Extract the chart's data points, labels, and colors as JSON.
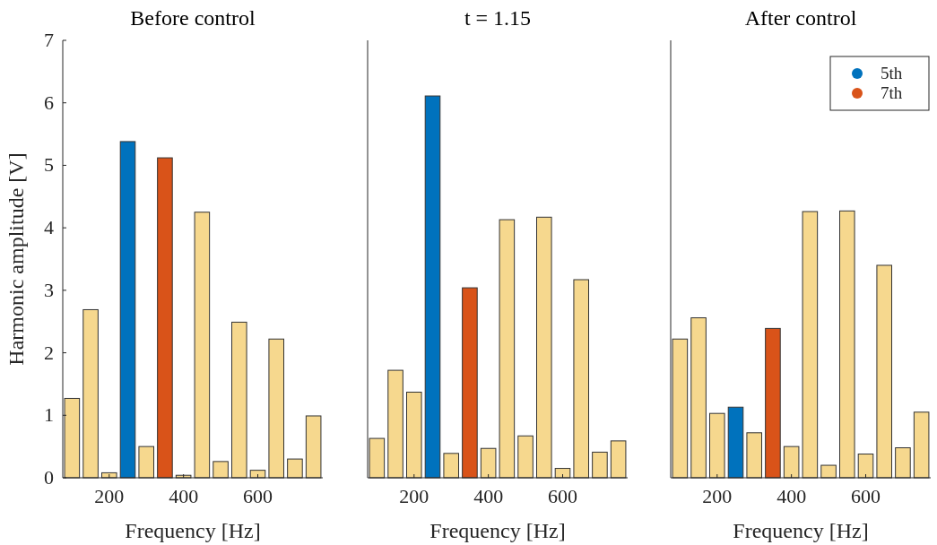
{
  "chart_data": [
    {
      "type": "bar",
      "title": "Before control",
      "xlabel": "Frequency [Hz]",
      "ylabel": "Harmonic amplitude [V]",
      "x": [
        100,
        150,
        200,
        250,
        300,
        350,
        400,
        450,
        500,
        550,
        600,
        650,
        700,
        750
      ],
      "xlim": [
        75,
        775
      ],
      "xticks": [
        200,
        400,
        600
      ],
      "ylim": [
        0,
        7
      ],
      "yticks": [
        0,
        1,
        2,
        3,
        4,
        5,
        6,
        7
      ],
      "legend": false,
      "series": [
        {
          "color": "#f6d88e",
          "values": [
            1.27,
            2.69,
            0.08,
            null,
            0.5,
            null,
            0.04,
            4.25,
            0.26,
            2.49,
            0.12,
            2.22,
            0.3,
            0.99
          ]
        },
        {
          "color": "#0072bd",
          "values": [
            null,
            null,
            null,
            5.38,
            null,
            null,
            null,
            null,
            null,
            null,
            null,
            null,
            null,
            null
          ]
        },
        {
          "color": "#d95319",
          "values": [
            null,
            null,
            null,
            null,
            null,
            5.12,
            null,
            null,
            null,
            null,
            null,
            null,
            null,
            null
          ]
        }
      ]
    },
    {
      "type": "bar",
      "title": "t = 1.15",
      "xlabel": "Frequency [Hz]",
      "x": [
        100,
        150,
        200,
        250,
        300,
        350,
        400,
        450,
        500,
        550,
        600,
        650,
        700,
        750
      ],
      "xlim": [
        75,
        775
      ],
      "xticks": [
        200,
        400,
        600
      ],
      "ylim": [
        0,
        7
      ],
      "tick_labels": "x",
      "legend": false,
      "series": [
        {
          "color": "#f6d88e",
          "values": [
            0.63,
            1.72,
            1.37,
            null,
            0.39,
            null,
            0.47,
            4.13,
            0.67,
            4.17,
            0.15,
            3.17,
            0.41,
            0.59
          ]
        },
        {
          "color": "#0072bd",
          "values": [
            null,
            null,
            null,
            6.11,
            null,
            null,
            null,
            null,
            null,
            null,
            null,
            null,
            null,
            null
          ]
        },
        {
          "color": "#d95319",
          "values": [
            null,
            null,
            null,
            null,
            null,
            3.04,
            null,
            null,
            null,
            null,
            null,
            null,
            null,
            null
          ]
        }
      ]
    },
    {
      "type": "bar",
      "title": "After control",
      "xlabel": "Frequency [Hz]",
      "x": [
        100,
        150,
        200,
        250,
        300,
        350,
        400,
        450,
        500,
        550,
        600,
        650,
        700,
        750
      ],
      "xlim": [
        75,
        775
      ],
      "xticks": [
        200,
        400,
        600
      ],
      "ylim": [
        0,
        7
      ],
      "tick_labels": "x",
      "legend": "top right",
      "series": [
        {
          "color": "#f6d88e",
          "values": [
            2.22,
            2.56,
            1.03,
            null,
            0.72,
            null,
            0.5,
            4.26,
            0.2,
            4.27,
            0.38,
            3.4,
            0.48,
            1.05
          ]
        },
        {
          "name": "5th",
          "color": "#0072bd",
          "values": [
            null,
            null,
            null,
            1.13,
            null,
            null,
            null,
            null,
            null,
            null,
            null,
            null,
            null,
            null
          ]
        },
        {
          "name": "7th",
          "color": "#d95319",
          "values": [
            null,
            null,
            null,
            null,
            null,
            2.39,
            null,
            null,
            null,
            null,
            null,
            null,
            null,
            null
          ]
        }
      ]
    }
  ]
}
